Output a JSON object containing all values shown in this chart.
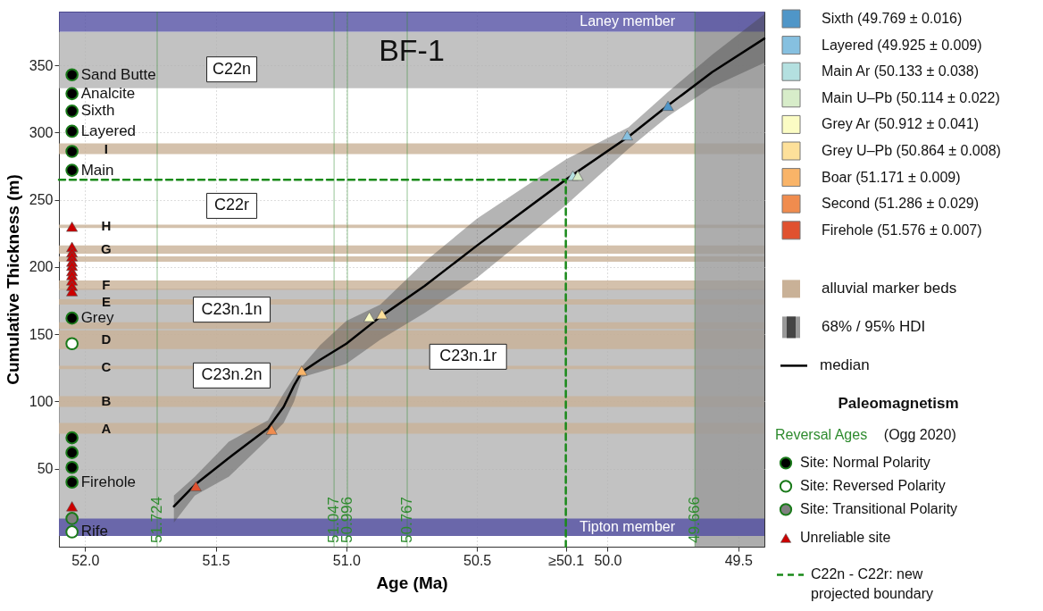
{
  "chart_data": {
    "type": "line",
    "title": "BF-1",
    "xlabel": "Age (Ma)",
    "ylabel": "Cumulative Thickness (m)",
    "legend_title": "Paleomagnetism",
    "legend": "right",
    "grid": true,
    "xlim": [
      52.1,
      49.4
    ],
    "xticks": [
      {
        "value": 52,
        "label": "52.0"
      },
      51.5,
      {
        "value": 51,
        "label": "51.0"
      },
      50.5,
      {
        "value": 50,
        "label": "50.0"
      },
      49.5,
      {
        "value": 50.16,
        "label": "≥50.1"
      }
    ],
    "ylim": [
      -8,
      390
    ],
    "yticks": [
      50,
      100,
      150,
      200,
      250,
      300,
      350
    ],
    "series": [
      {
        "name": "Sixth (49.769 ± 0.016)",
        "type": "scatter",
        "marker": "triangle",
        "color": "#4f96c8",
        "x": [
          49.769
        ],
        "values": [
          320
        ]
      },
      {
        "name": "Layered (49.925 ± 0.009)",
        "type": "scatter",
        "marker": "triangle",
        "color": "#86c0e0",
        "x": [
          49.925
        ],
        "values": [
          298
        ]
      },
      {
        "name": "Main Ar (50.133 ± 0.038)",
        "type": "scatter",
        "marker": "triangle",
        "color": "#b4e0e0",
        "x": [
          50.133
        ],
        "values": [
          268
        ]
      },
      {
        "name": "Main U–Pb (50.114 ± 0.022)",
        "type": "scatter",
        "marker": "triangle",
        "color": "#d7ecc9",
        "x": [
          50.114
        ],
        "values": [
          268
        ]
      },
      {
        "name": "Grey Ar (50.912 ± 0.041)",
        "type": "scatter",
        "marker": "triangle",
        "color": "#fbfcc4",
        "x": [
          50.912
        ],
        "values": [
          163
        ]
      },
      {
        "name": "Grey U–Pb (50.864 ± 0.008)",
        "type": "scatter",
        "marker": "triangle",
        "color": "#fde09a",
        "x": [
          50.864
        ],
        "values": [
          165
        ]
      },
      {
        "name": "Boar (51.171 ± 0.009)",
        "type": "scatter",
        "marker": "triangle",
        "color": "#f9b468",
        "x": [
          51.171
        ],
        "values": [
          123
        ]
      },
      {
        "name": "Second (51.286 ± 0.029)",
        "type": "scatter",
        "marker": "triangle",
        "color": "#f08c4e",
        "x": [
          51.286
        ],
        "values": [
          79
        ]
      },
      {
        "name": "Firehole (51.576 ± 0.007)",
        "type": "scatter",
        "marker": "triangle",
        "color": "#e0512f",
        "x": [
          51.576
        ],
        "values": [
          37
        ]
      },
      {
        "name": "median",
        "color": "#000000",
        "x": [
          51.66,
          51.58,
          51.45,
          51.3,
          51.24,
          51.2,
          51.17,
          51.1,
          51.0,
          50.87,
          50.7,
          50.5,
          50.16,
          49.92,
          49.77,
          49.6,
          49.4
        ],
        "values": [
          22,
          38,
          58,
          80,
          96,
          112,
          122,
          131,
          143,
          163,
          186,
          216,
          265,
          297,
          320,
          345,
          370
        ],
        "lower": [
          10,
          30,
          44,
          72,
          84,
          100,
          118,
          122,
          128,
          146,
          166,
          192,
          246,
          288,
          312,
          334,
          352
        ],
        "upper": [
          30,
          44,
          70,
          86,
          106,
          118,
          126,
          142,
          160,
          172,
          204,
          236,
          280,
          304,
          330,
          358,
          388
        ]
      },
      {
        "name": "Site: Normal Polarity",
        "type": "scatter",
        "marker": "circle",
        "color": "#000000",
        "x": [
          52.05,
          52.05,
          52.05,
          52.05,
          52.05,
          52.05,
          52.05,
          52.05,
          52.05,
          52.05,
          52.05
        ],
        "values": [
          343,
          329,
          316,
          301,
          286,
          272,
          162,
          73,
          62,
          51,
          40
        ],
        "value_labels": [
          "Sand Butte",
          "Analcite",
          "Sixth",
          "Layered",
          null,
          "Main",
          "Grey",
          null,
          null,
          null,
          "Firehole"
        ]
      },
      {
        "name": "Site: Reversed Polarity",
        "type": "scatter",
        "marker": "circle",
        "color": "#ffffff",
        "x": [
          52.05,
          52.05
        ],
        "values": [
          143,
          3
        ],
        "value_labels": [
          null,
          "Rife"
        ]
      },
      {
        "name": "Site: Transitional Polarity",
        "type": "scatter",
        "marker": "circle",
        "color": "#808080",
        "x": [
          52.05
        ],
        "values": [
          13
        ]
      },
      {
        "name": "Unreliable site",
        "type": "scatter",
        "marker": "triangle",
        "color": "#cc0000",
        "x": [
          52.05,
          52.05,
          52.05,
          52.05,
          52.05,
          52.05,
          52.05,
          52.05,
          52.05,
          52.05,
          52.05,
          52.05
        ],
        "values": [
          230,
          215,
          211,
          208,
          204,
          201,
          197,
          194,
          190,
          186,
          182,
          22
        ]
      },
      {
        "name": "C22n - C22r: new projected boundary",
        "type": "line",
        "line_style": "dashed",
        "color": "#1a8a1a",
        "x": [
          52.1,
          50.16,
          50.16
        ],
        "values": [
          265,
          265,
          -8
        ]
      }
    ],
    "bands": [
      {
        "axis": "y",
        "from": 333,
        "to": 375,
        "label": null,
        "color": "#b3b3b3"
      },
      {
        "axis": "y",
        "from": 0,
        "to": 184,
        "label": null,
        "color": "#b3b3b3"
      },
      {
        "axis": "y",
        "from": 284,
        "to": 292,
        "label": "I",
        "color": "#c9b197"
      },
      {
        "axis": "y",
        "from": 229,
        "to": 231.5,
        "label": "H",
        "color": "#c9b197"
      },
      {
        "axis": "y",
        "from": 210,
        "to": 216,
        "label": "G",
        "color": "#c9b197"
      },
      {
        "axis": "y",
        "from": 204,
        "to": 208,
        "label": null,
        "color": "#c9b197"
      },
      {
        "axis": "y",
        "from": 183,
        "to": 190,
        "label": "F",
        "color": "#c9b197"
      },
      {
        "axis": "y",
        "from": 172,
        "to": 176,
        "label": "E",
        "color": "#c9b197"
      },
      {
        "axis": "y",
        "from": 154,
        "to": 159,
        "label": null,
        "color": "#c9b197"
      },
      {
        "axis": "y",
        "from": 139,
        "to": 153,
        "label": "D",
        "color": "#c9b197"
      },
      {
        "axis": "y",
        "from": 124,
        "to": 126.5,
        "label": "C",
        "color": "#c9b197"
      },
      {
        "axis": "y",
        "from": 96,
        "to": 104,
        "label": "B",
        "color": "#c9b197"
      },
      {
        "axis": "y",
        "from": 76,
        "to": 84,
        "label": "A",
        "color": "#c9b197"
      },
      {
        "axis": "x",
        "from": 49.666,
        "to": 49.4,
        "label": null,
        "color": "#999999"
      },
      {
        "axis": "y",
        "from": 0,
        "to": 13,
        "label": "Tipton member",
        "color": "#5450a4"
      },
      {
        "axis": "y",
        "from": 375,
        "to": 390,
        "label": "Laney member",
        "color": "#5450a4"
      }
    ],
    "ref_lines": [
      {
        "axis": "x",
        "value": 51.724,
        "label": "51.724",
        "color": "#2e8b2e"
      },
      {
        "axis": "x",
        "value": 51.047,
        "label": "51.047",
        "color": "#2e8b2e"
      },
      {
        "axis": "x",
        "value": 50.996,
        "label": "50.996",
        "color": "#2e8b2e"
      },
      {
        "axis": "x",
        "value": 50.767,
        "label": "50.767",
        "color": "#2e8b2e"
      },
      {
        "axis": "x",
        "value": 49.666,
        "label": "49.666",
        "color": "#2e8b2e"
      }
    ],
    "annotations": [
      "alluvial marker beds",
      "68% / 95% HDI",
      "Reversal Ages",
      "(Ogg 2020)",
      "C22n",
      "C22r",
      "C23n.1n",
      "C23n.2n",
      "C23n.1r"
    ]
  }
}
